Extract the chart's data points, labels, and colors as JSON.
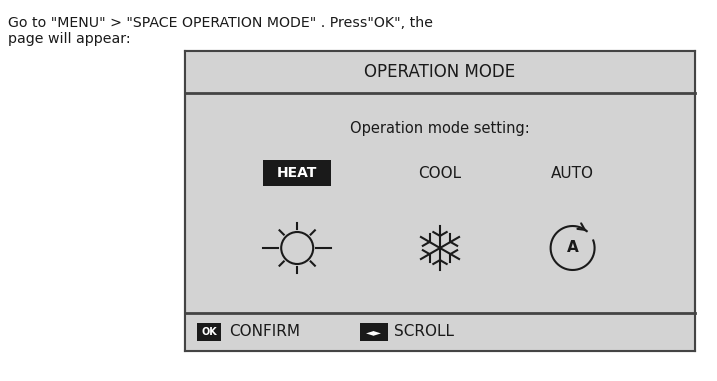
{
  "header_text_line1": "Go to \"MENU\" > \"SPACE OPERATION MODE\" . Press\"OK\", the",
  "header_text_line2": "page will appear:",
  "panel_title": "OPERATION MODE",
  "op_mode_label": "Operation mode setting:",
  "mode_labels": [
    "HEAT",
    "COOL",
    "AUTO"
  ],
  "footer_ok": "OK",
  "footer_confirm": "CONFIRM",
  "footer_scroll_icon": "◄►",
  "footer_scroll": "SCROLL",
  "bg_color": "#ffffff",
  "panel_bg": "#d3d3d3",
  "panel_border": "#444444",
  "title_bar_bg": "#d3d3d3",
  "footer_bar_bg": "#d3d3d3",
  "heat_box_bg": "#1a1a1a",
  "heat_box_fg": "#ffffff",
  "ok_box_bg": "#1a1a1a",
  "ok_box_fg": "#ffffff",
  "scroll_box_bg": "#1a1a1a",
  "scroll_box_fg": "#ffffff",
  "text_color": "#1a1a1a"
}
